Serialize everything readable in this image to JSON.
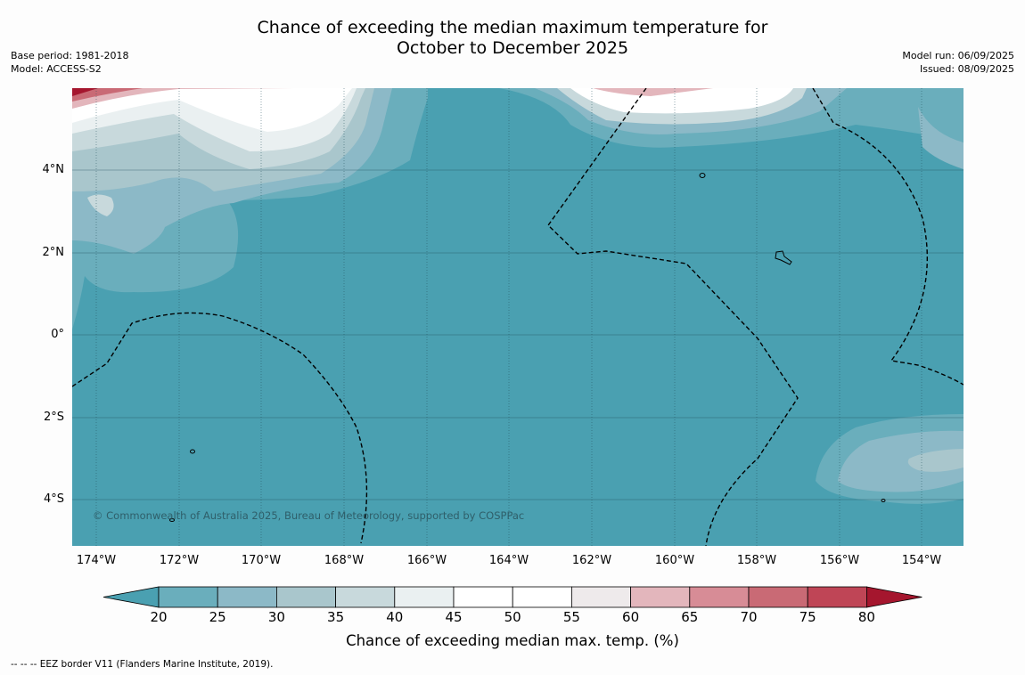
{
  "title": {
    "line1": "Chance of exceeding the median maximum temperature for",
    "line2": "October to December 2025"
  },
  "meta_left": {
    "base_period": "Base period: 1981-2018",
    "model": "Model: ACCESS-S2"
  },
  "meta_right": {
    "model_run": "Model run: 06/09/2025",
    "issued": "Issued: 08/09/2025"
  },
  "map": {
    "lat_labels": [
      "4°N",
      "2°N",
      "0°",
      "2°S",
      "4°S"
    ],
    "lon_labels": [
      "174°W",
      "172°W",
      "170°W",
      "168°W",
      "166°W",
      "164°W",
      "162°W",
      "160°W",
      "158°W",
      "156°W",
      "154°W"
    ],
    "copyright": "© Commonwealth of Australia 2025, Bureau of Meteorology, supported by COSPPac"
  },
  "colorbar": {
    "ticks": [
      "20",
      "25",
      "30",
      "35",
      "40",
      "45",
      "50",
      "55",
      "60",
      "65",
      "70",
      "75",
      "80"
    ],
    "label": "Chance of exceeding median max. temp. (%)",
    "colors": [
      "#4aa0b1",
      "#6aaebc",
      "#8cb9c7",
      "#a9c6cc",
      "#c8d9dc",
      "#eaf0f1",
      "#ffffff",
      "#ffffff",
      "#eeeaeb",
      "#e3b6bc",
      "#d78c96",
      "#c96a75",
      "#bf4556",
      "#a5162e"
    ]
  },
  "legend_note": "-- -- -- EEZ border V11 (Flanders Marine Institute, 2019)."
}
